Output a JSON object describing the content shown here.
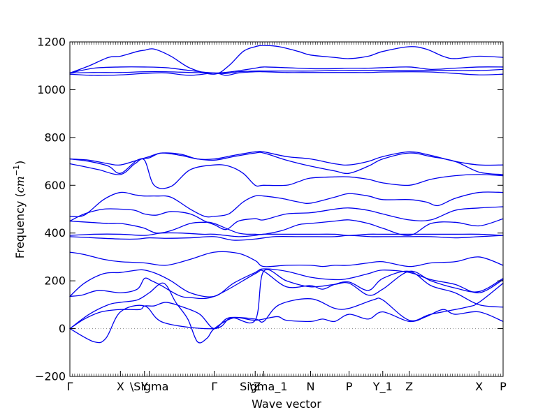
{
  "chart_data": {
    "type": "line",
    "title": "",
    "xlabel": "Wave vector",
    "ylabel_prefix": "Frequency (",
    "ylabel_unit_base": "cm",
    "ylabel_unit_exp": "−1",
    "ylabel_suffix": ")",
    "ylim": [
      -200,
      1200
    ],
    "yticks": [
      -200,
      0,
      200,
      400,
      600,
      800,
      1000,
      1200
    ],
    "xlim": [
      0,
      18
    ],
    "grid": false,
    "legend": "none",
    "line_color": "#0000ee",
    "zero_line_color": "#888888",
    "high_symmetry_points": [
      {
        "label": "Γ",
        "x": 0
      },
      {
        "label": "X",
        "x": 2.1
      },
      {
        "label": "Y",
        "x": 3.1
      },
      {
        "label": "\\Sigma",
        "x": 3.3
      },
      {
        "label": "Γ",
        "x": 6.0
      },
      {
        "label": "\\Z",
        "x": 7.7
      },
      {
        "label": "Sigma_1",
        "x": 8.05
      },
      {
        "label": "N",
        "x": 10.0
      },
      {
        "label": "P",
        "x": 11.6
      },
      {
        "label": "Y_1",
        "x": 13.0
      },
      {
        "label": "Z",
        "x": 14.1
      },
      {
        "label": "X",
        "x": 17.0
      },
      {
        "label": "P",
        "x": 18.0
      }
    ],
    "series": [
      {
        "x": [
          0,
          1.0,
          1.5,
          2.1,
          3.1,
          3.9,
          6.0,
          6.7,
          7.7,
          8.05,
          9.0,
          10.0,
          11.0,
          11.6,
          12.4,
          13.0,
          14.1,
          15.0,
          16.0,
          17.0,
          18.0
        ],
        "y": [
          0,
          -55,
          -40,
          70,
          95,
          25,
          0,
          45,
          35,
          240,
          200,
          175,
          185,
          190,
          140,
          165,
          240,
          200,
          170,
          155,
          210
        ]
      },
      {
        "x": [
          0,
          0.6,
          1.3,
          2.1,
          2.9,
          3.1,
          3.5,
          4.0,
          4.7,
          5.4,
          6.0,
          6.6,
          7.7,
          8.05,
          8.7,
          10.0,
          11.0,
          11.6,
          12.6,
          13.0,
          14.1,
          15.0,
          16.5,
          17.0,
          18.0
        ],
        "y": [
          0,
          40,
          70,
          80,
          80,
          95,
          95,
          110,
          90,
          60,
          0,
          45,
          40,
          30,
          100,
          125,
          85,
          85,
          120,
          120,
          35,
          60,
          90,
          110,
          190
        ]
      },
      {
        "x": [
          0,
          0.8,
          1.6,
          2.1,
          2.8,
          3.3,
          3.9,
          4.4,
          4.9,
          5.3,
          5.7,
          6.0,
          6.8,
          7.7,
          8.6,
          9.0,
          10.0,
          10.5,
          11.0,
          11.6,
          12.4,
          13.0,
          14.1,
          14.8,
          15.5,
          16.0,
          17.0,
          18.0
        ],
        "y": [
          0,
          60,
          100,
          110,
          120,
          150,
          190,
          110,
          40,
          -55,
          -40,
          0,
          45,
          35,
          50,
          35,
          30,
          40,
          30,
          60,
          40,
          70,
          30,
          50,
          80,
          60,
          70,
          30
        ]
      },
      {
        "x": [
          0,
          0.5,
          1.2,
          2.1,
          2.8,
          3.1,
          3.4,
          3.8,
          4.5,
          5.0,
          6.0,
          7.7,
          8.05,
          9.0,
          10.0,
          10.5,
          11.0,
          11.6,
          12.4,
          13.0,
          14.1,
          15.0,
          16.0,
          17.0,
          18.0
        ],
        "y": [
          135,
          140,
          160,
          150,
          165,
          210,
          200,
          180,
          140,
          130,
          135,
          230,
          240,
          175,
          180,
          165,
          185,
          195,
          160,
          210,
          240,
          180,
          150,
          100,
          90
        ]
      },
      {
        "x": [
          0,
          0.6,
          1.4,
          2.1,
          2.8,
          3.1,
          3.6,
          4.2,
          5.0,
          6.0,
          6.8,
          7.7,
          8.05,
          9.0,
          10.0,
          11.0,
          11.6,
          12.4,
          13.0,
          14.1,
          15.0,
          16.0,
          17.0,
          18.0
        ],
        "y": [
          135,
          190,
          230,
          235,
          245,
          245,
          230,
          200,
          150,
          135,
          190,
          235,
          250,
          240,
          215,
          205,
          210,
          230,
          245,
          235,
          205,
          185,
          150,
          205
        ]
      },
      {
        "x": [
          0,
          0.6,
          1.4,
          2.1,
          3.1,
          4.0,
          5.0,
          6.0,
          7.0,
          7.7,
          8.05,
          9.0,
          10.0,
          10.5,
          11.0,
          11.6,
          12.4,
          13.0,
          14.1,
          15.0,
          16.0,
          17.0,
          18.0
        ],
        "y": [
          320,
          310,
          290,
          280,
          275,
          265,
          290,
          320,
          315,
          285,
          260,
          265,
          265,
          260,
          265,
          265,
          275,
          280,
          260,
          275,
          280,
          300,
          265
        ]
      },
      {
        "x": [
          0,
          1.0,
          2.1,
          2.8,
          3.3,
          4.0,
          5.0,
          6.0,
          6.8,
          7.7,
          8.5,
          9.5,
          10.0,
          11.0,
          11.6,
          12.5,
          13.0,
          14.1,
          15.0,
          16.0,
          17.0,
          18.0
        ],
        "y": [
          385,
          380,
          375,
          375,
          380,
          378,
          380,
          385,
          370,
          375,
          385,
          385,
          385,
          385,
          390,
          385,
          385,
          385,
          385,
          380,
          385,
          390
        ]
      },
      {
        "x": [
          0,
          1.0,
          2.1,
          3.1,
          3.8,
          4.6,
          5.5,
          6.0,
          7.0,
          7.7,
          8.05,
          9.0,
          10.0,
          11.0,
          11.6,
          12.4,
          13.0,
          14.1,
          15.0,
          16.0,
          17.0,
          18.0
        ],
        "y": [
          390,
          395,
          395,
          390,
          400,
          400,
          395,
          395,
          385,
          390,
          395,
          395,
          395,
          395,
          390,
          395,
          395,
          395,
          395,
          395,
          395,
          390
        ]
      },
      {
        "x": [
          0,
          0.8,
          1.6,
          2.1,
          2.7,
          3.1,
          3.6,
          4.2,
          5.0,
          5.6,
          6.0,
          7.0,
          7.7,
          8.05,
          8.8,
          9.5,
          10.0,
          11.0,
          11.6,
          12.4,
          13.0,
          14.1,
          15.0,
          16.0,
          17.0,
          18.0
        ],
        "y": [
          450,
          445,
          440,
          440,
          430,
          420,
          400,
          410,
          440,
          445,
          440,
          400,
          395,
          395,
          410,
          435,
          440,
          450,
          455,
          440,
          420,
          390,
          440,
          445,
          430,
          460
        ]
      },
      {
        "x": [
          0,
          0.6,
          1.4,
          2.1,
          2.7,
          3.1,
          3.6,
          4.2,
          5.0,
          5.6,
          6.0,
          6.5,
          7.0,
          7.7,
          8.05,
          9.0,
          10.0,
          11.0,
          11.6,
          12.4,
          13.0,
          14.1,
          15.0,
          16.0,
          17.0,
          18.0
        ],
        "y": [
          450,
          480,
          500,
          500,
          495,
          480,
          475,
          490,
          480,
          450,
          435,
          415,
          450,
          460,
          455,
          480,
          485,
          500,
          505,
          495,
          480,
          455,
          455,
          495,
          505,
          510
        ]
      },
      {
        "x": [
          0,
          0.6,
          1.4,
          2.1,
          2.7,
          3.1,
          3.6,
          4.2,
          5.0,
          5.6,
          6.0,
          6.6,
          7.2,
          7.7,
          8.05,
          8.8,
          9.5,
          10.0,
          11.0,
          11.6,
          12.4,
          13.0,
          14.1,
          14.8,
          15.3,
          16.0,
          17.0,
          18.0
        ],
        "y": [
          470,
          475,
          540,
          570,
          560,
          555,
          555,
          550,
          500,
          470,
          470,
          480,
          530,
          555,
          555,
          545,
          530,
          525,
          550,
          565,
          555,
          540,
          540,
          530,
          515,
          545,
          570,
          570
        ]
      },
      {
        "x": [
          0,
          0.5,
          1.2,
          2.1,
          2.7,
          3.1,
          3.5,
          4.2,
          5.0,
          6.0,
          6.6,
          7.2,
          7.7,
          8.05,
          9.0,
          9.5,
          10.0,
          11.0,
          11.6,
          12.4,
          13.0,
          14.1,
          15.0,
          16.0,
          17.0,
          18.0
        ],
        "y": [
          690,
          680,
          665,
          645,
          690,
          705,
          600,
          595,
          665,
          685,
          680,
          650,
          600,
          600,
          600,
          615,
          630,
          635,
          635,
          625,
          610,
          600,
          625,
          640,
          645,
          640
        ]
      },
      {
        "x": [
          0,
          0.8,
          1.6,
          2.1,
          2.8,
          3.3,
          3.8,
          4.6,
          5.3,
          6.0,
          6.8,
          7.7,
          8.05,
          9.0,
          10.0,
          11.0,
          11.6,
          12.4,
          13.0,
          14.1,
          15.0,
          16.0,
          17.0,
          18.0
        ],
        "y": [
          710,
          700,
          680,
          650,
          705,
          715,
          735,
          725,
          710,
          705,
          720,
          735,
          735,
          705,
          680,
          660,
          650,
          680,
          710,
          735,
          720,
          700,
          655,
          645
        ]
      },
      {
        "x": [
          0,
          0.8,
          1.6,
          2.1,
          2.8,
          3.3,
          3.8,
          4.6,
          5.3,
          6.0,
          6.8,
          7.7,
          8.05,
          9.0,
          10.0,
          11.0,
          11.6,
          12.4,
          13.0,
          14.1,
          15.0,
          16.0,
          17.0,
          18.0
        ],
        "y": [
          710,
          705,
          690,
          685,
          705,
          720,
          735,
          730,
          710,
          710,
          725,
          740,
          740,
          720,
          710,
          690,
          685,
          700,
          720,
          740,
          725,
          700,
          685,
          685
        ]
      },
      {
        "x": [
          0,
          1.0,
          2.1,
          3.1,
          4.0,
          5.0,
          6.0,
          6.5,
          7.0,
          7.7,
          8.05,
          9.0,
          10.0,
          11.0,
          11.6,
          12.4,
          13.0,
          14.1,
          15.0,
          16.0,
          17.0,
          18.0
        ],
        "y": [
          1065,
          1060,
          1062,
          1068,
          1070,
          1060,
          1070,
          1060,
          1070,
          1075,
          1075,
          1072,
          1072,
          1072,
          1072,
          1072,
          1074,
          1075,
          1074,
          1068,
          1062,
          1065
        ]
      },
      {
        "x": [
          0,
          1.0,
          2.1,
          3.1,
          4.0,
          5.0,
          6.0,
          6.5,
          7.0,
          7.7,
          8.05,
          9.0,
          10.0,
          11.0,
          11.6,
          12.4,
          13.0,
          14.1,
          15.0,
          16.0,
          17.0,
          18.0
        ],
        "y": [
          1070,
          1072,
          1072,
          1075,
          1075,
          1072,
          1070,
          1068,
          1075,
          1078,
          1078,
          1078,
          1078,
          1080,
          1080,
          1080,
          1080,
          1080,
          1080,
          1080,
          1080,
          1085
        ]
      },
      {
        "x": [
          0,
          1.0,
          2.1,
          3.1,
          4.0,
          5.0,
          6.0,
          6.7,
          7.7,
          8.05,
          9.0,
          10.0,
          11.0,
          11.6,
          12.4,
          13.0,
          14.1,
          15.0,
          16.0,
          17.0,
          18.0
        ],
        "y": [
          1070,
          1090,
          1095,
          1095,
          1092,
          1080,
          1070,
          1075,
          1090,
          1095,
          1092,
          1088,
          1088,
          1090,
          1090,
          1092,
          1095,
          1085,
          1090,
          1095,
          1095
        ]
      },
      {
        "x": [
          0,
          0.8,
          1.6,
          2.1,
          2.8,
          3.1,
          3.5,
          4.2,
          5.0,
          6.0,
          6.6,
          7.2,
          7.7,
          8.05,
          8.7,
          9.5,
          10.0,
          11.0,
          11.6,
          12.4,
          13.0,
          14.1,
          14.8,
          15.5,
          16.0,
          17.0,
          18.0
        ],
        "y": [
          1070,
          1100,
          1135,
          1140,
          1160,
          1165,
          1170,
          1140,
          1090,
          1065,
          1100,
          1160,
          1180,
          1185,
          1180,
          1160,
          1145,
          1135,
          1130,
          1140,
          1160,
          1180,
          1170,
          1140,
          1130,
          1140,
          1135
        ]
      }
    ]
  }
}
